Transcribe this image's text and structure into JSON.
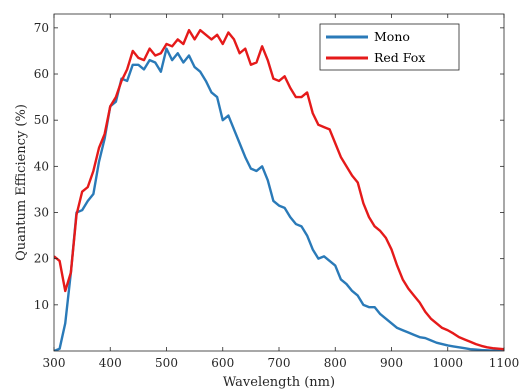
{
  "chart_data": {
    "type": "line",
    "xlabel": "Wavelength (nm)",
    "ylabel": "Quantum Efficiency (%)",
    "xlim": [
      300,
      1100
    ],
    "ylim": [
      0,
      73
    ],
    "xticks": [
      300,
      400,
      500,
      600,
      700,
      800,
      900,
      1000,
      1100
    ],
    "yticks": [
      10,
      20,
      30,
      40,
      50,
      60,
      70
    ],
    "grid": false,
    "legend_position": "top-right",
    "series": [
      {
        "name": "Mono",
        "color": "#2a7ab8",
        "points": [
          [
            300,
            0
          ],
          [
            310,
            0.5
          ],
          [
            320,
            6
          ],
          [
            330,
            17
          ],
          [
            340,
            30
          ],
          [
            350,
            30.5
          ],
          [
            360,
            32.5
          ],
          [
            370,
            34
          ],
          [
            380,
            41
          ],
          [
            390,
            46
          ],
          [
            400,
            53
          ],
          [
            410,
            54
          ],
          [
            420,
            59
          ],
          [
            430,
            58.5
          ],
          [
            440,
            62
          ],
          [
            450,
            62
          ],
          [
            460,
            61
          ],
          [
            470,
            63
          ],
          [
            480,
            62.5
          ],
          [
            490,
            60.5
          ],
          [
            500,
            65.5
          ],
          [
            510,
            63
          ],
          [
            520,
            64.5
          ],
          [
            530,
            62.5
          ],
          [
            540,
            64
          ],
          [
            550,
            61.5
          ],
          [
            560,
            60.5
          ],
          [
            570,
            58.5
          ],
          [
            580,
            56
          ],
          [
            590,
            55
          ],
          [
            600,
            50
          ],
          [
            610,
            51
          ],
          [
            620,
            48
          ],
          [
            630,
            45
          ],
          [
            640,
            42
          ],
          [
            650,
            39.5
          ],
          [
            660,
            39
          ],
          [
            670,
            40
          ],
          [
            680,
            37
          ],
          [
            690,
            32.5
          ],
          [
            700,
            31.5
          ],
          [
            710,
            31
          ],
          [
            720,
            29
          ],
          [
            730,
            27.5
          ],
          [
            740,
            27
          ],
          [
            750,
            25
          ],
          [
            760,
            22
          ],
          [
            770,
            20
          ],
          [
            780,
            20.5
          ],
          [
            790,
            19.5
          ],
          [
            800,
            18.5
          ],
          [
            810,
            15.5
          ],
          [
            820,
            14.5
          ],
          [
            830,
            13
          ],
          [
            840,
            12
          ],
          [
            850,
            10
          ],
          [
            860,
            9.5
          ],
          [
            870,
            9.5
          ],
          [
            880,
            8
          ],
          [
            890,
            7
          ],
          [
            900,
            6
          ],
          [
            910,
            5
          ],
          [
            920,
            4.5
          ],
          [
            930,
            4
          ],
          [
            940,
            3.5
          ],
          [
            950,
            3
          ],
          [
            960,
            2.8
          ],
          [
            970,
            2.3
          ],
          [
            980,
            1.8
          ],
          [
            990,
            1.5
          ],
          [
            1000,
            1.2
          ],
          [
            1010,
            1
          ],
          [
            1020,
            0.8
          ],
          [
            1030,
            0.6
          ],
          [
            1040,
            0.4
          ],
          [
            1050,
            0.3
          ],
          [
            1060,
            0.2
          ],
          [
            1070,
            0.15
          ],
          [
            1080,
            0.1
          ],
          [
            1090,
            0.1
          ],
          [
            1100,
            0.05
          ]
        ]
      },
      {
        "name": "Red Fox",
        "color": "#e51a1a",
        "points": [
          [
            300,
            20.5
          ],
          [
            310,
            19.5
          ],
          [
            320,
            13
          ],
          [
            330,
            17
          ],
          [
            340,
            29.5
          ],
          [
            350,
            34.5
          ],
          [
            360,
            35.5
          ],
          [
            370,
            39
          ],
          [
            380,
            44
          ],
          [
            390,
            47
          ],
          [
            400,
            53
          ],
          [
            410,
            55
          ],
          [
            420,
            58.5
          ],
          [
            430,
            61
          ],
          [
            440,
            65
          ],
          [
            450,
            63.5
          ],
          [
            460,
            63
          ],
          [
            470,
            65.5
          ],
          [
            480,
            64
          ],
          [
            490,
            64.5
          ],
          [
            500,
            66.5
          ],
          [
            510,
            66
          ],
          [
            520,
            67.5
          ],
          [
            530,
            66.5
          ],
          [
            540,
            69.5
          ],
          [
            550,
            67.5
          ],
          [
            560,
            69.5
          ],
          [
            570,
            68.5
          ],
          [
            580,
            67.5
          ],
          [
            590,
            68.5
          ],
          [
            600,
            66.5
          ],
          [
            610,
            69
          ],
          [
            620,
            67.5
          ],
          [
            630,
            64.5
          ],
          [
            640,
            65.5
          ],
          [
            650,
            62
          ],
          [
            660,
            62.5
          ],
          [
            670,
            66
          ],
          [
            680,
            63
          ],
          [
            690,
            59
          ],
          [
            700,
            58.5
          ],
          [
            710,
            59.5
          ],
          [
            720,
            57
          ],
          [
            730,
            55
          ],
          [
            740,
            55
          ],
          [
            750,
            56
          ],
          [
            760,
            51.5
          ],
          [
            770,
            49
          ],
          [
            780,
            48.5
          ],
          [
            790,
            48
          ],
          [
            800,
            45
          ],
          [
            810,
            42
          ],
          [
            820,
            40
          ],
          [
            830,
            38
          ],
          [
            840,
            36.5
          ],
          [
            850,
            32
          ],
          [
            860,
            29
          ],
          [
            870,
            27
          ],
          [
            880,
            26
          ],
          [
            890,
            24.5
          ],
          [
            900,
            22
          ],
          [
            910,
            18.5
          ],
          [
            920,
            15.5
          ],
          [
            930,
            13.5
          ],
          [
            940,
            12
          ],
          [
            950,
            10.5
          ],
          [
            960,
            8.5
          ],
          [
            970,
            7
          ],
          [
            980,
            6
          ],
          [
            990,
            5
          ],
          [
            1000,
            4.5
          ],
          [
            1010,
            3.8
          ],
          [
            1020,
            3
          ],
          [
            1030,
            2.5
          ],
          [
            1040,
            2
          ],
          [
            1050,
            1.5
          ],
          [
            1060,
            1.1
          ],
          [
            1070,
            0.8
          ],
          [
            1080,
            0.6
          ],
          [
            1090,
            0.5
          ],
          [
            1100,
            0.4
          ]
        ]
      }
    ]
  }
}
